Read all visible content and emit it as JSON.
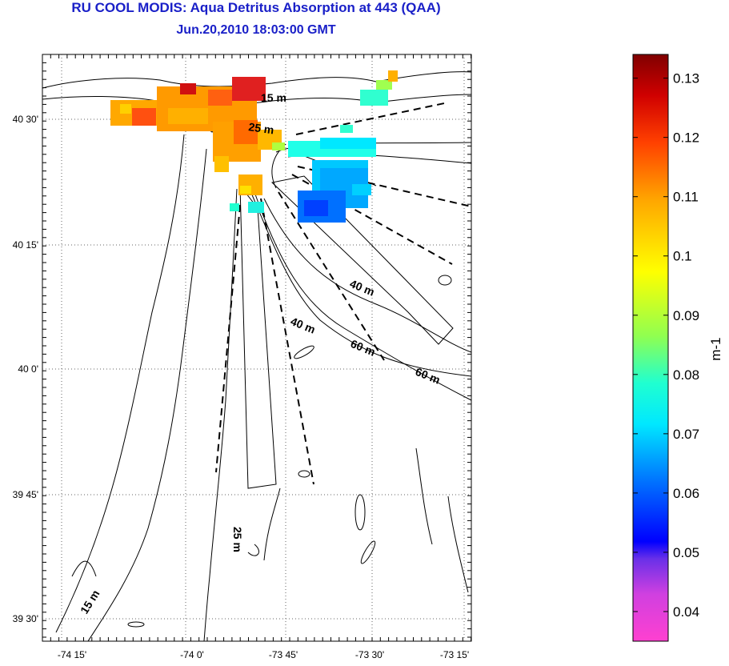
{
  "title": "RU COOL MODIS: Aqua Detritus Absorption at 443 (QAA)",
  "subtitle": "Jun.20,2010 18:03:00 GMT",
  "map": {
    "lon_ticks": [
      "-74 15'",
      "-74 0'",
      "-73 45'",
      "-73 30'",
      "-73 15'"
    ],
    "lat_ticks": [
      "40 30'",
      "40 15'",
      "40 0'",
      "39 45'",
      "39 30'"
    ],
    "contour_labels": [
      "15 m",
      "25 m",
      "40 m",
      "40 m",
      "60 m",
      "60 m",
      "25 m",
      "15 m"
    ]
  },
  "colorbar": {
    "unit_label": "m-1",
    "ticks": [
      "0.13",
      "0.12",
      "0.11",
      "0.1",
      "0.09",
      "0.08",
      "0.07",
      "0.06",
      "0.05",
      "0.04"
    ],
    "range": [
      0.035,
      0.134
    ]
  },
  "colors": {
    "title": "#1a20c8",
    "colormap": [
      "#ff40d0",
      "#9a30e0",
      "#0000ff",
      "#0080ff",
      "#00ffff",
      "#80ff60",
      "#ffff00",
      "#ffa000",
      "#ff3000",
      "#800000"
    ]
  }
}
